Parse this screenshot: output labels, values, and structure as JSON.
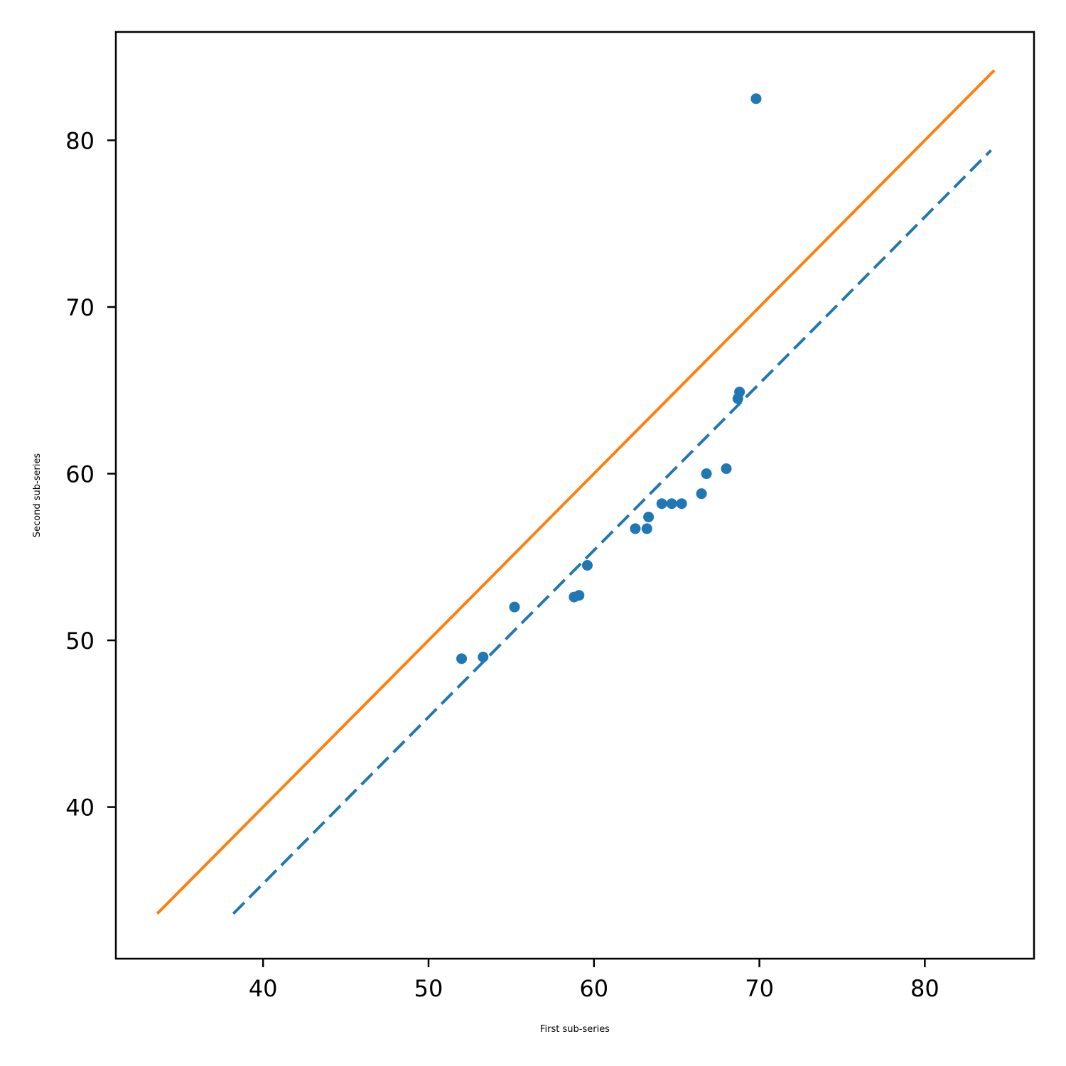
{
  "chart_data": {
    "type": "scatter",
    "title": "",
    "xlabel": "First sub-series",
    "ylabel": "Second sub-series",
    "xlim": [
      31.1,
      86.6
    ],
    "ylim": [
      30.9,
      86.5
    ],
    "xticks": [
      40,
      50,
      60,
      70,
      80
    ],
    "yticks": [
      40,
      50,
      60,
      70,
      80
    ],
    "grid": false,
    "series": [
      {
        "kind": "scatter",
        "color": "#1f77b4",
        "points": [
          [
            52.0,
            48.9
          ],
          [
            53.3,
            49.0
          ],
          [
            55.2,
            52.0
          ],
          [
            58.8,
            52.6
          ],
          [
            59.1,
            52.7
          ],
          [
            59.6,
            54.5
          ],
          [
            62.5,
            56.7
          ],
          [
            63.2,
            56.7
          ],
          [
            63.3,
            57.4
          ],
          [
            64.1,
            58.2
          ],
          [
            64.7,
            58.2
          ],
          [
            65.3,
            58.2
          ],
          [
            66.5,
            58.8
          ],
          [
            66.8,
            60.0
          ],
          [
            68.0,
            60.3
          ],
          [
            68.7,
            64.5
          ],
          [
            68.8,
            64.9
          ],
          [
            69.8,
            82.5
          ]
        ]
      },
      {
        "kind": "line",
        "style": "dashed",
        "color": "#1f77b4",
        "points": [
          [
            38.2,
            33.6
          ],
          [
            84.0,
            79.4
          ]
        ]
      },
      {
        "kind": "line",
        "style": "solid",
        "color": "#ff7f0e",
        "points": [
          [
            33.6,
            33.6
          ],
          [
            84.2,
            84.2
          ]
        ]
      }
    ]
  }
}
